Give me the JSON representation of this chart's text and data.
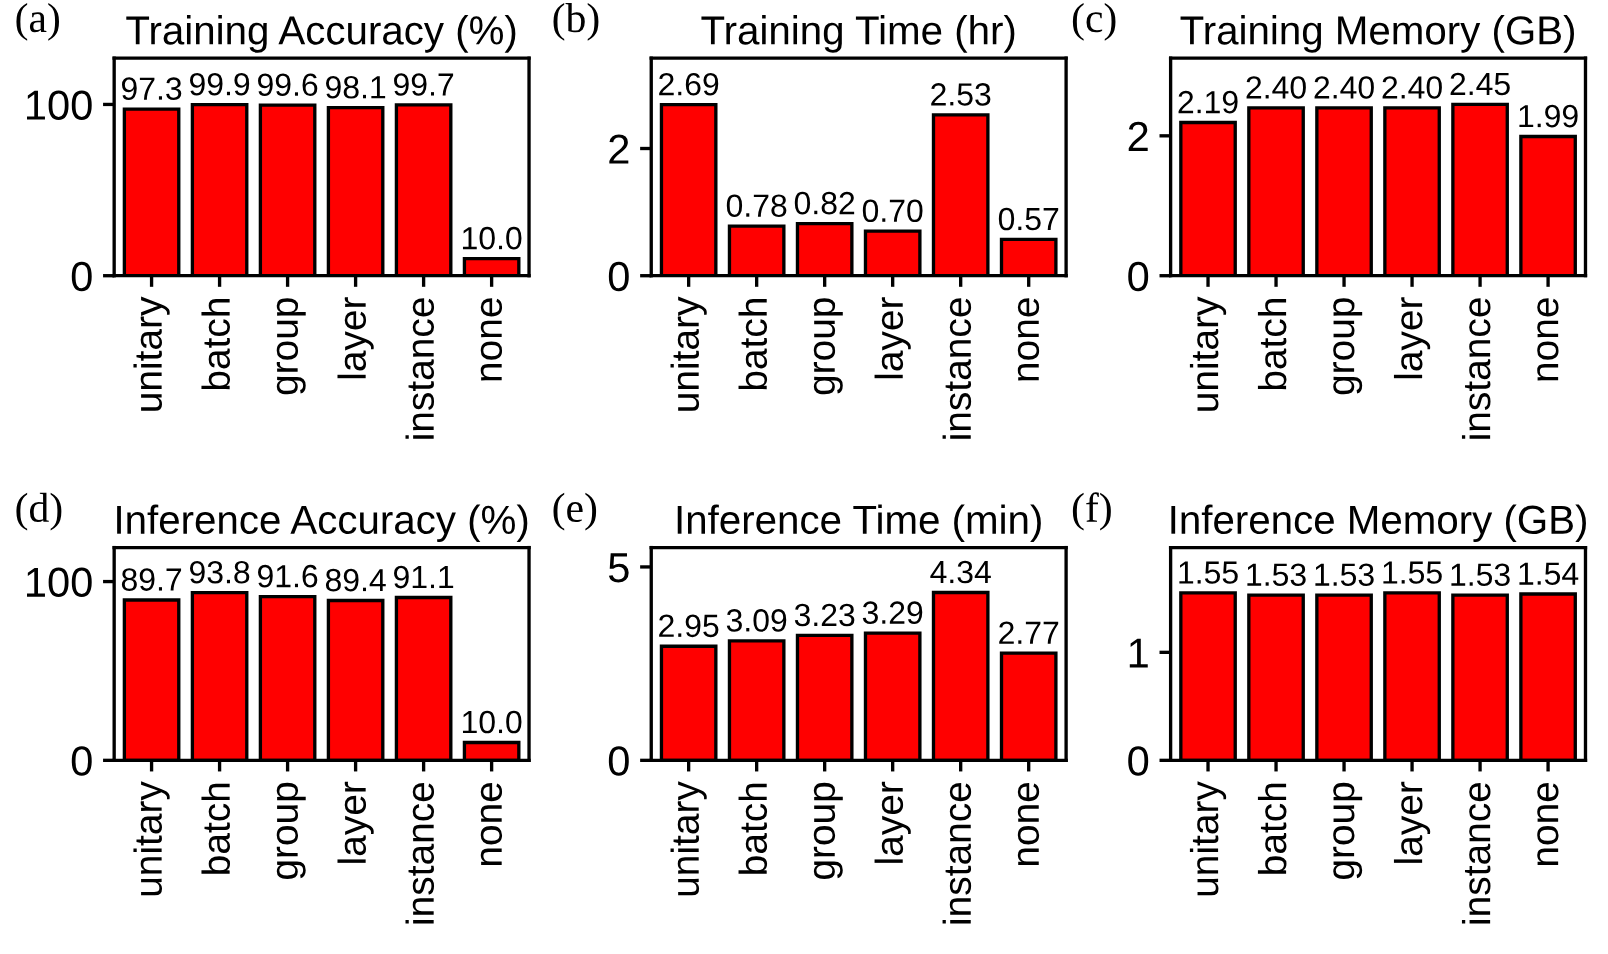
{
  "chart_data": [
    {
      "type": "bar",
      "title": "Training Accuracy (%)",
      "annotations": [
        "(a)"
      ],
      "categories": [
        "unitary",
        "batch",
        "group",
        "layer",
        "instance",
        "none"
      ],
      "color": "#ff0000",
      "values": [
        97.3,
        99.9,
        99.6,
        98.1,
        99.7,
        10.0
      ],
      "value_labels": [
        "97.3",
        "99.9",
        "99.6",
        "98.1",
        "99.7",
        "10.0"
      ],
      "ylim": [
        0,
        127
      ],
      "yticks": [
        0,
        100
      ]
    },
    {
      "type": "bar",
      "title": "Training Time (hr)",
      "annotations": [
        "(b)"
      ],
      "categories": [
        "unitary",
        "batch",
        "group",
        "layer",
        "instance",
        "none"
      ],
      "color": "#ff0000",
      "values": [
        2.69,
        0.78,
        0.82,
        0.7,
        2.53,
        0.57
      ],
      "value_labels": [
        "2.69",
        "0.78",
        "0.82",
        "0.70",
        "2.53",
        "0.57"
      ],
      "ylim": [
        0,
        3.42
      ],
      "yticks": [
        0,
        2
      ]
    },
    {
      "type": "bar",
      "title": "Training Memory (GB)",
      "annotations": [
        "(c)"
      ],
      "categories": [
        "unitary",
        "batch",
        "group",
        "layer",
        "instance",
        "none"
      ],
      "color": "#ff0000",
      "values": [
        2.19,
        2.4,
        2.4,
        2.4,
        2.45,
        1.99
      ],
      "value_labels": [
        "2.19",
        "2.40",
        "2.40",
        "2.40",
        "2.45",
        "1.99"
      ],
      "ylim": [
        0,
        3.11
      ],
      "yticks": [
        0,
        2
      ]
    },
    {
      "type": "bar",
      "title": "Inference Accuracy (%)",
      "annotations": [
        "(d)"
      ],
      "categories": [
        "unitary",
        "batch",
        "group",
        "layer",
        "instance",
        "none"
      ],
      "color": "#ff0000",
      "values": [
        89.7,
        93.8,
        91.6,
        89.4,
        91.1,
        10.0
      ],
      "value_labels": [
        "89.7",
        "93.8",
        "91.6",
        "89.4",
        "91.1",
        "10.0"
      ],
      "ylim": [
        0,
        119
      ],
      "yticks": [
        0,
        100
      ]
    },
    {
      "type": "bar",
      "title": "Inference Time (min)",
      "annotations": [
        "(e)"
      ],
      "categories": [
        "unitary",
        "batch",
        "group",
        "layer",
        "instance",
        "none"
      ],
      "color": "#ff0000",
      "values": [
        2.95,
        3.09,
        3.23,
        3.29,
        4.34,
        2.77
      ],
      "value_labels": [
        "2.95",
        "3.09",
        "3.23",
        "3.29",
        "4.34",
        "2.77"
      ],
      "ylim": [
        0,
        5.5
      ],
      "yticks": [
        0,
        5
      ]
    },
    {
      "type": "bar",
      "title": "Inference Memory (GB)",
      "annotations": [
        "(f)"
      ],
      "categories": [
        "unitary",
        "batch",
        "group",
        "layer",
        "instance",
        "none"
      ],
      "color": "#ff0000",
      "values": [
        1.55,
        1.53,
        1.53,
        1.55,
        1.53,
        1.54
      ],
      "value_labels": [
        "1.55",
        "1.53",
        "1.53",
        "1.55",
        "1.53",
        "1.54"
      ],
      "ylim": [
        0,
        1.97
      ],
      "yticks": [
        0,
        1
      ]
    }
  ]
}
